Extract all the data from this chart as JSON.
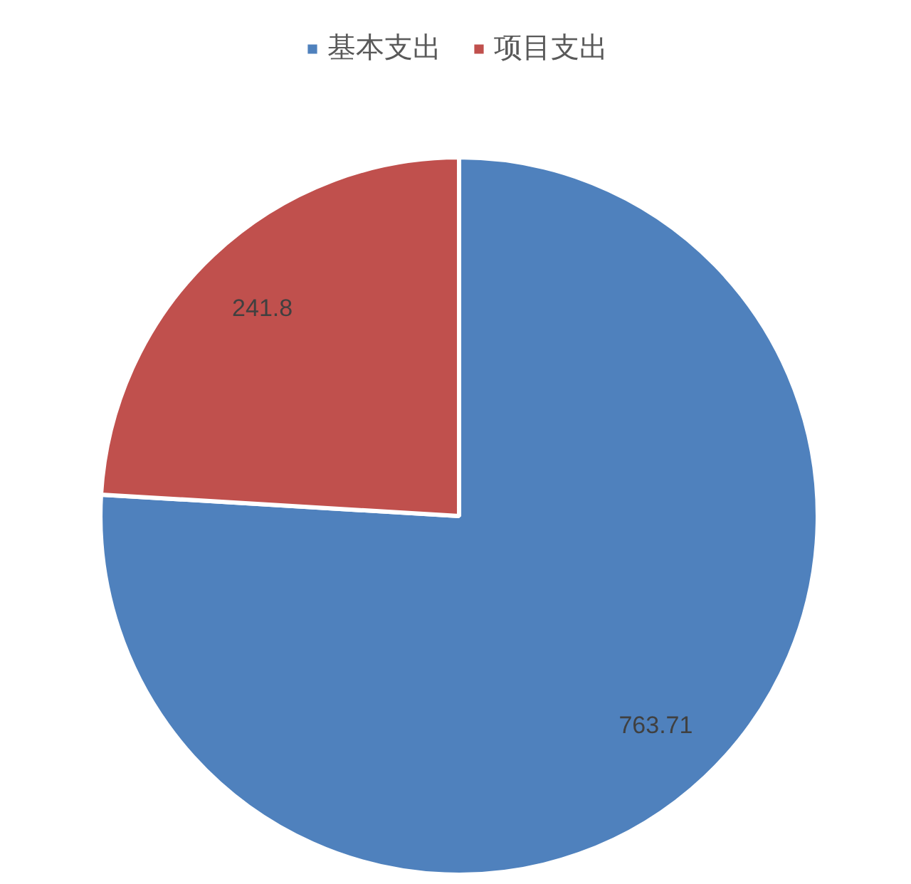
{
  "chart_data": {
    "type": "pie",
    "categories": [
      "基本支出",
      "项目支出"
    ],
    "values": [
      763.71,
      241.8
    ],
    "colors": [
      "#4f81bd",
      "#c0504d"
    ],
    "data_labels": true,
    "legend": "top"
  }
}
